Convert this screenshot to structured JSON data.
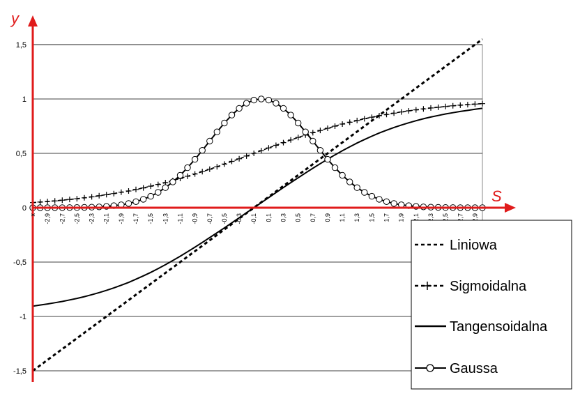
{
  "colors": {
    "axis": "#e01b1b",
    "grid": "#000000",
    "series": "#000000",
    "plot_border": "#888888"
  },
  "chart_data": {
    "type": "line",
    "x_axis_letter": "S",
    "y_axis_letter": "y",
    "xlim": [
      -3.1,
      3.0
    ],
    "ylim": [
      -1.5,
      1.5
    ],
    "grid": "horizontal",
    "legend_placement": "bottom-right",
    "yticks": [
      "1,5",
      "1",
      "0,5",
      "0",
      "-0,5",
      "-1",
      "-1,5"
    ],
    "xticks": [
      "x",
      "-2,9",
      "-2,7",
      "-2,5",
      "-2,3",
      "-2,1",
      "-1,9",
      "-1,7",
      "-1,5",
      "-1,3",
      "-1,1",
      "-0,9",
      "-0,7",
      "-0,5",
      "-0,3",
      "-0,1",
      "0,1",
      "0,3",
      "0,5",
      "0,7",
      "0,9",
      "1,1",
      "1,3",
      "1,5",
      "1,7",
      "1,9",
      "2,1",
      "2,3",
      "2,5",
      "2,7",
      "2,9"
    ],
    "x": [
      -3.1,
      -3.0,
      -2.9,
      -2.8,
      -2.7,
      -2.6,
      -2.5,
      -2.4,
      -2.3,
      -2.2,
      -2.1,
      -2.0,
      -1.9,
      -1.8,
      -1.7,
      -1.6,
      -1.5,
      -1.4,
      -1.3,
      -1.2,
      -1.1,
      -1.0,
      -0.9,
      -0.8,
      -0.7,
      -0.6,
      -0.5,
      -0.4,
      -0.3,
      -0.2,
      -0.1,
      0.0,
      0.1,
      0.2,
      0.3,
      0.4,
      0.5,
      0.6,
      0.7,
      0.8,
      0.9,
      1.0,
      1.1,
      1.2,
      1.3,
      1.4,
      1.5,
      1.6,
      1.7,
      1.8,
      1.9,
      2.0,
      2.1,
      2.2,
      2.3,
      2.4,
      2.5,
      2.6,
      2.7,
      2.8,
      2.9,
      3.0
    ],
    "series": [
      {
        "name": "Liniowa",
        "style": "dashed",
        "marker": "none",
        "values": [
          -1.5,
          -1.45,
          -1.4,
          -1.35,
          -1.3,
          -1.25,
          -1.2,
          -1.15,
          -1.1,
          -1.05,
          -1.0,
          -0.95,
          -0.9,
          -0.85,
          -0.8,
          -0.75,
          -0.7,
          -0.65,
          -0.6,
          -0.55,
          -0.5,
          -0.45,
          -0.4,
          -0.35,
          -0.3,
          -0.25,
          -0.2,
          -0.15,
          -0.1,
          -0.05,
          0.0,
          0.05,
          0.1,
          0.15,
          0.2,
          0.25,
          0.3,
          0.35,
          0.4,
          0.45,
          0.5,
          0.55,
          0.6,
          0.65,
          0.7,
          0.75,
          0.8,
          0.85,
          0.9,
          0.95,
          1.0,
          1.05,
          1.1,
          1.15,
          1.2,
          1.25,
          1.3,
          1.35,
          1.4,
          1.45,
          1.5,
          1.55
        ]
      },
      {
        "name": "Sigmoidalna",
        "style": "dashed",
        "marker": "plus",
        "values": [
          0.047,
          0.052,
          0.057,
          0.063,
          0.069,
          0.076,
          0.083,
          0.091,
          0.1,
          0.11,
          0.12,
          0.13,
          0.142,
          0.154,
          0.168,
          0.182,
          0.198,
          0.214,
          0.231,
          0.25,
          0.269,
          0.289,
          0.31,
          0.332,
          0.354,
          0.377,
          0.401,
          0.426,
          0.45,
          0.475,
          0.5,
          0.525,
          0.55,
          0.574,
          0.599,
          0.623,
          0.646,
          0.668,
          0.69,
          0.711,
          0.731,
          0.75,
          0.769,
          0.786,
          0.802,
          0.818,
          0.832,
          0.846,
          0.858,
          0.87,
          0.881,
          0.891,
          0.9,
          0.909,
          0.917,
          0.924,
          0.931,
          0.937,
          0.943,
          0.948,
          0.953,
          0.957
        ]
      },
      {
        "name": "Tangensoidalna",
        "style": "solid",
        "marker": "none",
        "values": [
          -0.905,
          -0.895,
          -0.885,
          -0.874,
          -0.862,
          -0.848,
          -0.834,
          -0.818,
          -0.8,
          -0.781,
          -0.76,
          -0.738,
          -0.713,
          -0.687,
          -0.658,
          -0.627,
          -0.595,
          -0.56,
          -0.524,
          -0.486,
          -0.446,
          -0.405,
          -0.363,
          -0.319,
          -0.275,
          -0.23,
          -0.185,
          -0.139,
          -0.093,
          -0.046,
          0.0,
          0.046,
          0.093,
          0.139,
          0.185,
          0.23,
          0.275,
          0.319,
          0.363,
          0.405,
          0.446,
          0.486,
          0.524,
          0.56,
          0.595,
          0.627,
          0.658,
          0.687,
          0.713,
          0.738,
          0.76,
          0.781,
          0.8,
          0.818,
          0.834,
          0.848,
          0.862,
          0.874,
          0.885,
          0.895,
          0.905,
          0.914
        ]
      },
      {
        "name": "Gaussa",
        "style": "solid",
        "marker": "circle",
        "values": [
          0.0001,
          0.0002,
          0.0003,
          0.0005,
          0.0008,
          0.0012,
          0.002,
          0.0031,
          0.005,
          0.0079,
          0.0122,
          0.0183,
          0.0271,
          0.0392,
          0.0556,
          0.0773,
          0.1054,
          0.1409,
          0.1845,
          0.2369,
          0.2982,
          0.3679,
          0.4449,
          0.5273,
          0.6126,
          0.6977,
          0.7788,
          0.8521,
          0.9139,
          0.9608,
          0.99,
          1.0,
          0.99,
          0.9608,
          0.9139,
          0.8521,
          0.7788,
          0.6977,
          0.6126,
          0.5273,
          0.4449,
          0.3679,
          0.2982,
          0.2369,
          0.1845,
          0.1409,
          0.1054,
          0.0773,
          0.0556,
          0.0392,
          0.0271,
          0.0183,
          0.0122,
          0.0079,
          0.005,
          0.0031,
          0.002,
          0.0012,
          0.0008,
          0.0005,
          0.0003,
          0.0002
        ]
      }
    ]
  }
}
